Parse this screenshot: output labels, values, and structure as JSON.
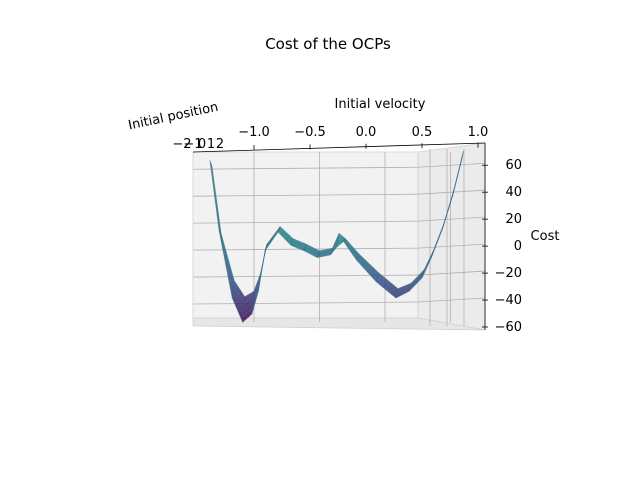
{
  "chart_data": {
    "type": "surface",
    "title": "Cost of the OCPs",
    "xlabel": "Initial velocity",
    "ylabel": "Initial position",
    "zlabel": "Cost",
    "xticks": [
      "−1.0",
      "−0.5",
      "0.0",
      "0.5",
      "1.0"
    ],
    "yticks": [
      "−2",
      "−1",
      "0",
      "1",
      "2"
    ],
    "zticks": [
      "60",
      "40",
      "20",
      "0",
      "−20",
      "−40",
      "−60"
    ],
    "xlim": [
      -1.0,
      1.0
    ],
    "ylim": [
      -2,
      2
    ],
    "zlim": [
      -60,
      75
    ],
    "grid": true,
    "colormap": "viridis",
    "colormap_stops": [
      "#440154",
      "#3b528b",
      "#21918c",
      "#5ec962",
      "#fde725"
    ],
    "series": [
      {
        "values_x": [
          -0.97,
          -0.9,
          -0.8,
          -0.72,
          -0.65,
          -0.6,
          -0.55,
          -0.45,
          -0.35,
          -0.25,
          -0.15,
          -0.05,
          0.0,
          0.05,
          0.15,
          0.3,
          0.45,
          0.55,
          0.65,
          0.72,
          0.8,
          0.88,
          0.95
        ],
        "values_z": [
          62,
          10,
          -40,
          -58,
          -52,
          -35,
          -5,
          9,
          -1,
          -5,
          -10,
          -8,
          -2,
          2,
          -12,
          -28,
          -40,
          -35,
          -25,
          -10,
          10,
          35,
          62
        ]
      },
      {
        "values_x": [
          -0.97,
          -0.9,
          -0.8,
          -0.72,
          -0.65,
          -0.6,
          -0.55,
          -0.45,
          -0.35,
          -0.25,
          -0.15,
          -0.05,
          0.0,
          0.05,
          0.15,
          0.3,
          0.45,
          0.55,
          0.65,
          0.72,
          0.8,
          0.88,
          0.95
        ],
        "values_z": [
          55,
          5,
          -30,
          -42,
          -38,
          -25,
          -3,
          10,
          1,
          -3,
          -8,
          -6,
          5,
          1,
          -10,
          -24,
          -36,
          -32,
          -22,
          -8,
          12,
          38,
          66
        ]
      }
    ]
  }
}
